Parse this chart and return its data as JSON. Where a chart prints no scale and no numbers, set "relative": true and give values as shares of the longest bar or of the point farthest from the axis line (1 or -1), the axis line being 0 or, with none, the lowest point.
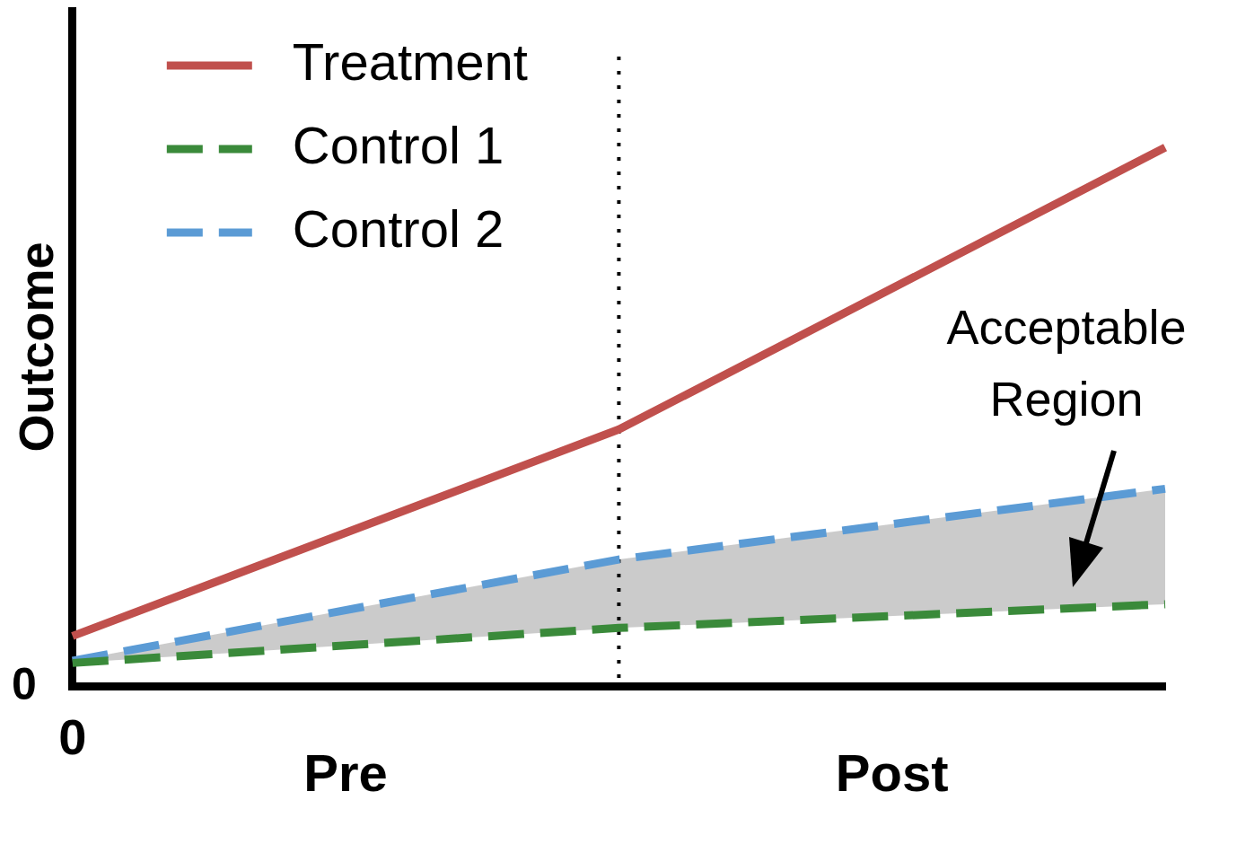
{
  "chart_data": {
    "type": "line",
    "relative": true,
    "ylabel": "Outcome",
    "categories": [
      null,
      null,
      null
    ],
    "series": [
      {
        "name": "Treatment",
        "color": "#c0504d",
        "line_style": "solid",
        "values": [
          0.094,
          0.477,
          1
        ]
      },
      {
        "name": "Control 1",
        "color": "#3a8a3a",
        "line_style": "dashed",
        "values": [
          0.044,
          0.109,
          0.153
        ]
      },
      {
        "name": "Control 2",
        "color": "#5b9bd5",
        "line_style": "dashed",
        "values": [
          0.048,
          0.236,
          0.367
        ],
        "lower": [
          0.044,
          0.109,
          0.153
        ],
        "upper": [
          0.048,
          0.236,
          0.367
        ]
      }
    ],
    "annotations": [
      "0",
      "0",
      "Pre",
      "Post",
      "Acceptable Region"
    ],
    "legend": "top left",
    "grid": false,
    "marker": "none"
  }
}
